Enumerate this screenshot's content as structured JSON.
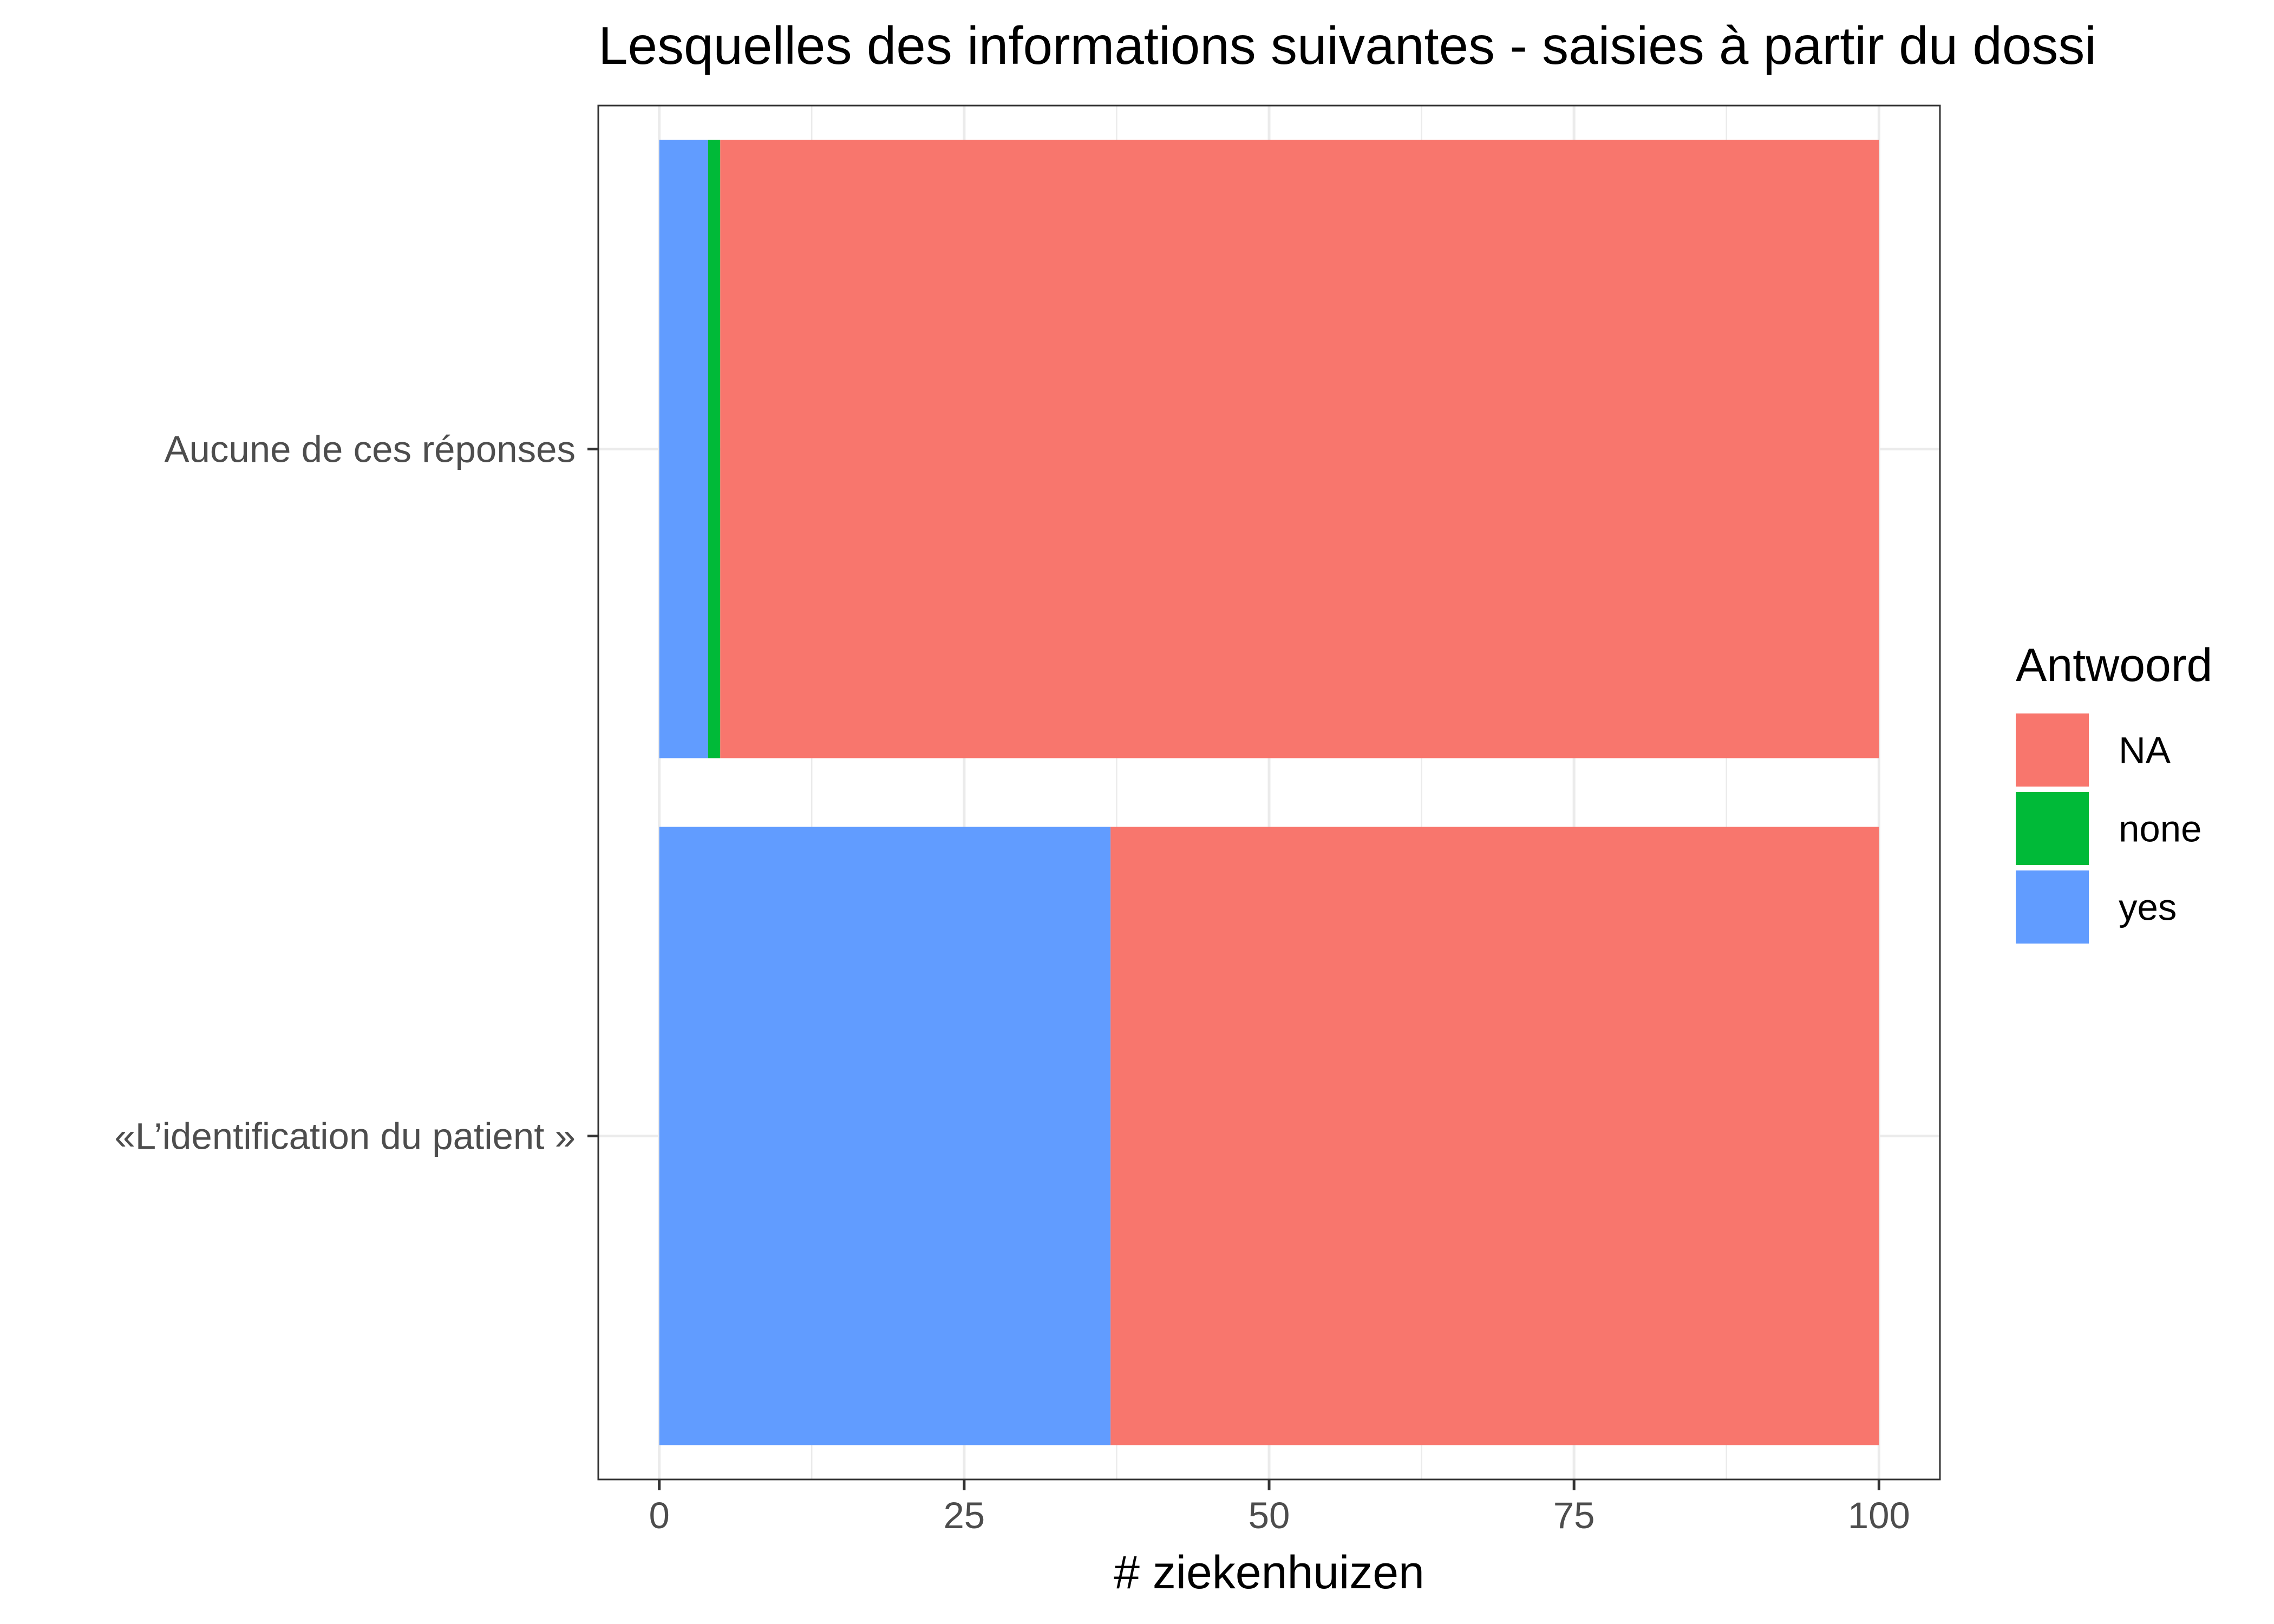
{
  "chart_data": {
    "type": "bar",
    "orientation": "horizontal",
    "stacked": true,
    "title": "Lesquelles des informations suivantes - saisies à partir du dossi",
    "xlabel": "# ziekenhuizen",
    "ylabel": "",
    "xlim": [
      -5,
      105
    ],
    "xticks": [
      0,
      25,
      50,
      75,
      100
    ],
    "xtick_labels": [
      "0",
      "25",
      "50",
      "75",
      "100"
    ],
    "grid": true,
    "categories": [
      "Aucune de ces réponses",
      "«L’identification du patient »"
    ],
    "series": [
      {
        "name": "yes",
        "color": "#619CFF",
        "values": [
          4,
          37
        ]
      },
      {
        "name": "none",
        "color": "#00BA38",
        "values": [
          1,
          0
        ]
      },
      {
        "name": "NA",
        "color": "#F8766D",
        "values": [
          95,
          63
        ]
      }
    ],
    "legend": {
      "title": "Antwoord",
      "position": "right",
      "items": [
        {
          "label": "NA",
          "color": "#F8766D"
        },
        {
          "label": "none",
          "color": "#00BA38"
        },
        {
          "label": "yes",
          "color": "#619CFF"
        }
      ]
    }
  }
}
